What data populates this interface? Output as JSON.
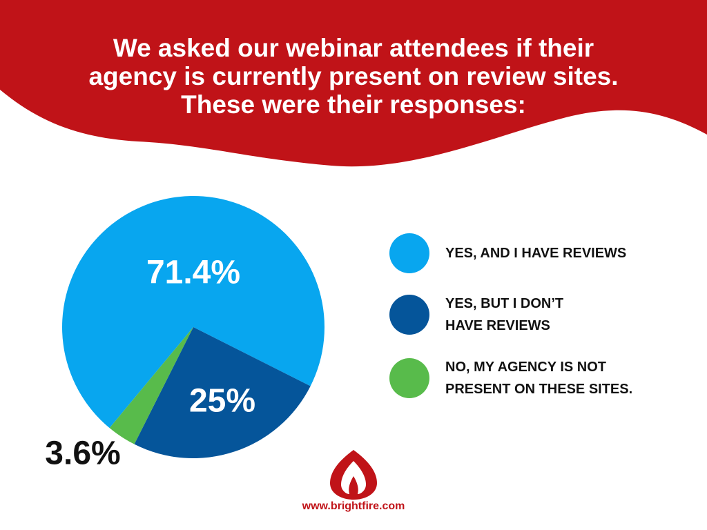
{
  "chart_data": {
    "type": "pie",
    "title": [
      "We asked our webinar attendees if their",
      "agency is currently present on review sites.",
      "These were their responses:"
    ],
    "categories": [
      "YES, AND I HAVE REVIEWS",
      "YES, BUT I DON’T HAVE REVIEWS",
      "NO, MY AGENCY IS NOT PRESENT ON THESE SITES."
    ],
    "values": [
      71.4,
      25,
      3.6
    ],
    "value_labels": [
      "71.4%",
      "25%",
      "3.6%"
    ],
    "colors": [
      "#08a6ef",
      "#05559a",
      "#58bb4b"
    ],
    "footer": "www.brightfire.com"
  }
}
